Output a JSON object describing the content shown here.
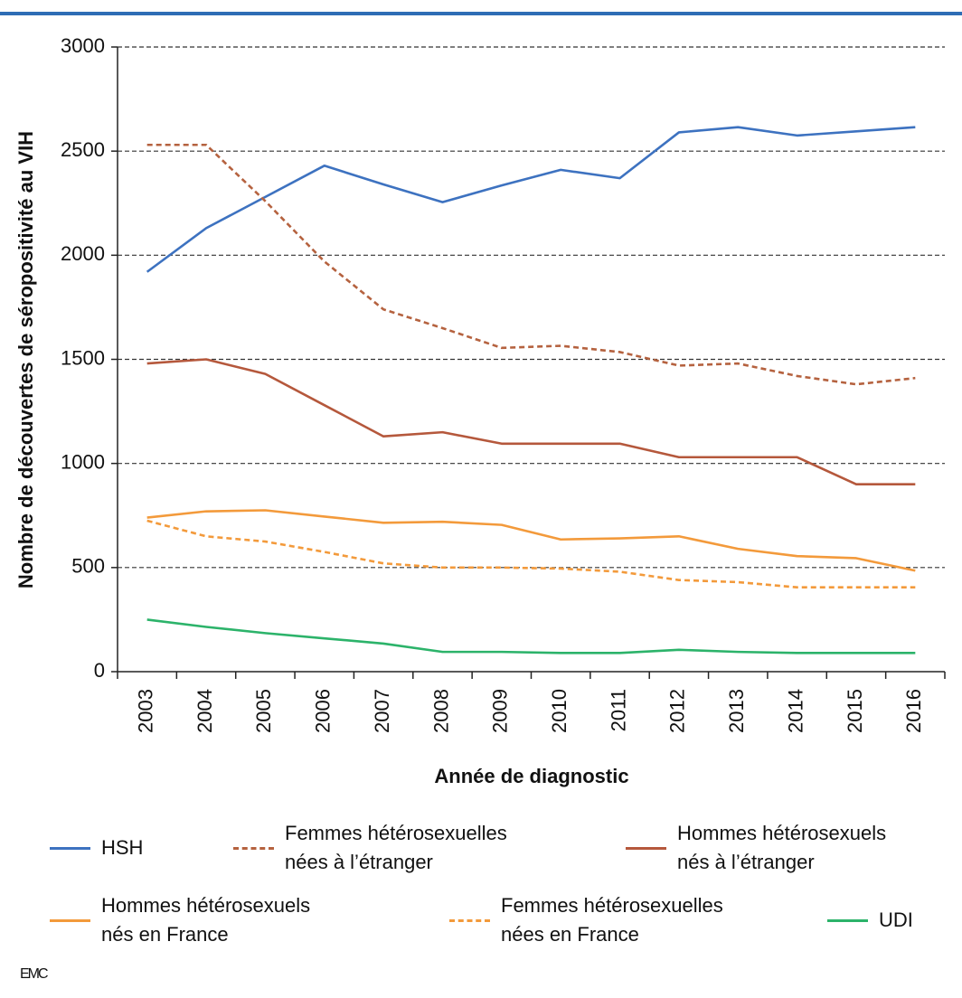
{
  "chart_data": {
    "type": "line",
    "y_axis_label": "Nombre de découvertes de séropositivité au VIH",
    "x_axis_label": "Année de diagnostic",
    "source": "EMC",
    "categories": [
      "2003",
      "2004",
      "2005",
      "2006",
      "2007",
      "2008",
      "2009",
      "2010",
      "2011",
      "2012",
      "2013",
      "2014",
      "2015",
      "2016"
    ],
    "ylim": [
      0,
      3000
    ],
    "yticks": [
      0,
      500,
      1000,
      1500,
      2000,
      2500,
      3000
    ],
    "grid": true,
    "series": [
      {
        "name": "HSH",
        "color": "#3d72c0",
        "dashed": false,
        "values": [
          1920,
          2130,
          2280,
          2430,
          2340,
          2255,
          2335,
          2410,
          2370,
          2590,
          2615,
          2575,
          2595,
          2615
        ]
      },
      {
        "name": "Femmes hétérosexuelles nées à l’étranger",
        "color": "#b5623f",
        "dashed": true,
        "values": [
          2530,
          2530,
          2260,
          1970,
          1740,
          1650,
          1555,
          1565,
          1535,
          1470,
          1480,
          1420,
          1380,
          1410
        ]
      },
      {
        "name": "Hommes hétérosexuels nés à l’étranger",
        "color": "#b5583c",
        "dashed": false,
        "values": [
          1480,
          1500,
          1430,
          1280,
          1130,
          1150,
          1095,
          1095,
          1095,
          1030,
          1030,
          1030,
          900,
          900
        ]
      },
      {
        "name": "Hommes hétérosexuels nés en France",
        "color": "#f39a3b",
        "dashed": false,
        "values": [
          740,
          770,
          775,
          745,
          715,
          720,
          705,
          635,
          640,
          650,
          590,
          555,
          545,
          485
        ]
      },
      {
        "name": "Femmes hétérosexuelles nées en France",
        "color": "#f39a3b",
        "dashed": true,
        "values": [
          725,
          650,
          625,
          575,
          520,
          500,
          500,
          495,
          480,
          440,
          430,
          405,
          405,
          405
        ]
      },
      {
        "name": "UDI",
        "color": "#2cb36a",
        "dashed": false,
        "values": [
          250,
          215,
          185,
          160,
          135,
          95,
          95,
          90,
          90,
          105,
          95,
          90,
          90,
          90
        ]
      }
    ]
  }
}
